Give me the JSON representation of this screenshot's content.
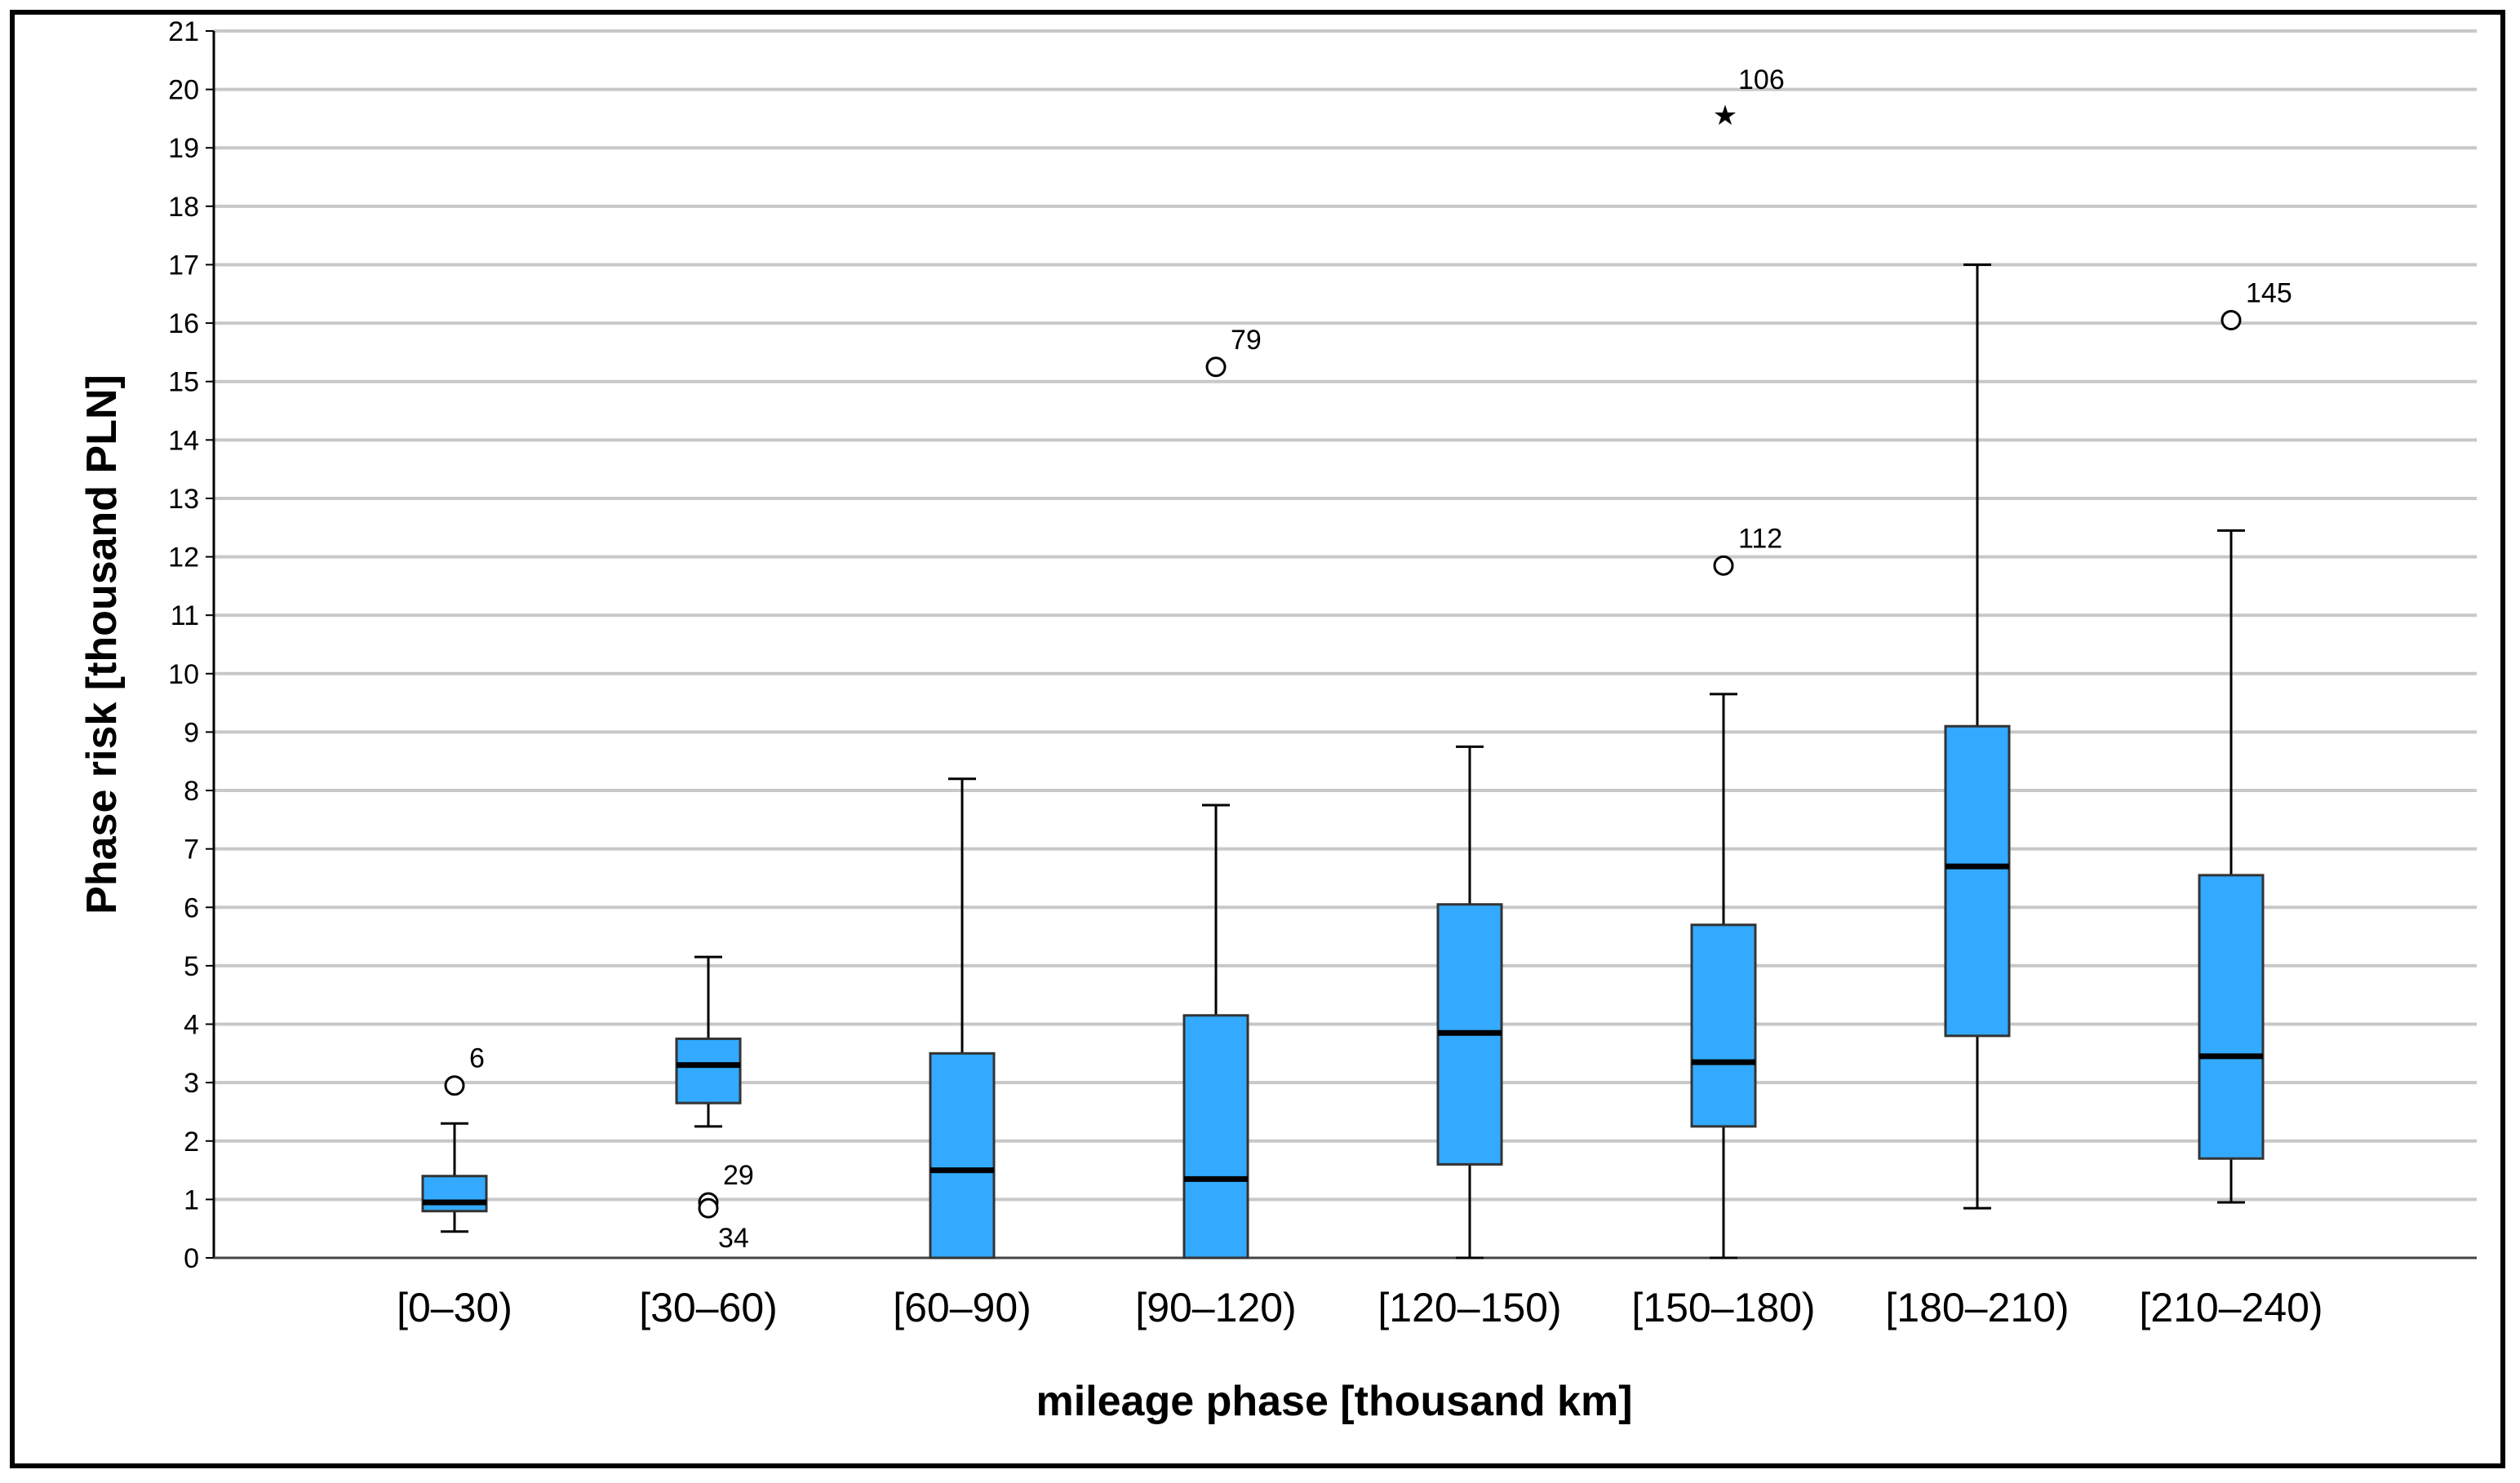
{
  "chart_data": {
    "type": "boxplot",
    "xlabel": "mileage phase [thousand km]",
    "ylabel": "Phase risk [thousand PLN]",
    "ylim": [
      0,
      21
    ],
    "yticks": [
      0,
      1,
      2,
      3,
      4,
      5,
      6,
      7,
      8,
      9,
      10,
      11,
      12,
      13,
      14,
      15,
      16,
      17,
      18,
      19,
      20,
      21
    ],
    "grid": true,
    "colors": {
      "box_fill": "#33AAFF",
      "stroke": "#000000",
      "grid": "#C8C8C8"
    },
    "categories": [
      "[0–30)",
      "[30–60)",
      "[60–90)",
      "[90–120)",
      "[120–150)",
      "[150–180)",
      "[180–210)",
      "[210–240)"
    ],
    "boxes": [
      {
        "whisker_low": 0.45,
        "q1": 0.8,
        "median": 0.95,
        "q3": 1.4,
        "whisker_high": 2.3,
        "outliers": [
          {
            "value": 2.95,
            "label": "6",
            "marker": "circle"
          }
        ]
      },
      {
        "whisker_low": 2.25,
        "q1": 2.65,
        "median": 3.3,
        "q3": 3.75,
        "whisker_high": 5.15,
        "outliers": [
          {
            "value": 0.95,
            "label": "29",
            "marker": "circle"
          },
          {
            "value": 0.85,
            "label": "34",
            "marker": "circle"
          }
        ]
      },
      {
        "whisker_low": 0.0,
        "q1": 0.0,
        "median": 1.5,
        "q3": 3.5,
        "whisker_high": 8.2,
        "outliers": []
      },
      {
        "whisker_low": 0.0,
        "q1": 0.0,
        "median": 1.35,
        "q3": 4.15,
        "whisker_high": 7.75,
        "outliers": [
          {
            "value": 15.25,
            "label": "79",
            "marker": "circle"
          }
        ]
      },
      {
        "whisker_low": 0.0,
        "q1": 1.6,
        "median": 3.85,
        "q3": 6.05,
        "whisker_high": 8.75,
        "outliers": []
      },
      {
        "whisker_low": 0.0,
        "q1": 2.25,
        "median": 3.35,
        "q3": 5.7,
        "whisker_high": 9.65,
        "outliers": [
          {
            "value": 11.85,
            "label": "112",
            "marker": "circle"
          },
          {
            "value": 19.7,
            "label": "106",
            "marker": "star"
          }
        ]
      },
      {
        "whisker_low": 0.85,
        "q1": 3.8,
        "median": 6.7,
        "q3": 9.1,
        "whisker_high": 17.0,
        "outliers": []
      },
      {
        "whisker_low": 0.95,
        "q1": 1.7,
        "median": 3.45,
        "q3": 6.55,
        "whisker_high": 12.45,
        "outliers": [
          {
            "value": 16.05,
            "label": "145",
            "marker": "circle"
          }
        ]
      }
    ]
  }
}
